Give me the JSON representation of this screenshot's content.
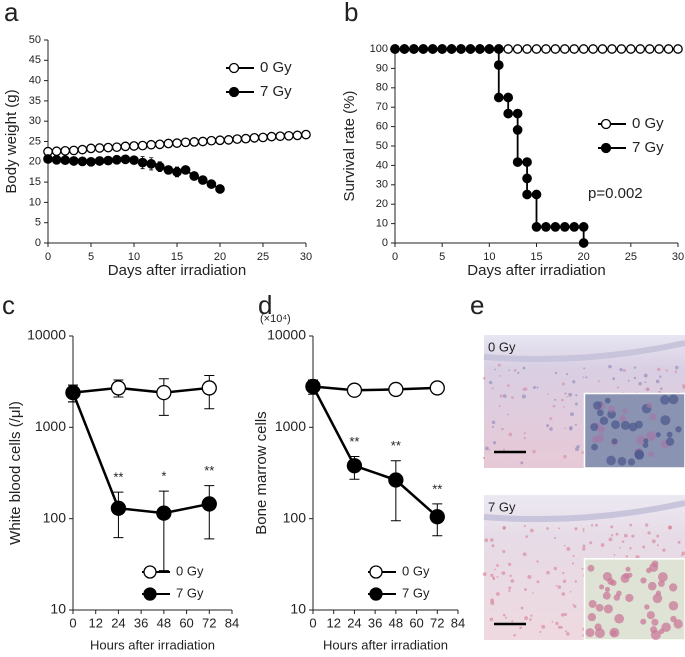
{
  "chart_data": [
    {
      "type": "line",
      "panel_label": "a",
      "ylabel": "Body weight (g)",
      "xlabel": "Days after irradiation",
      "x": [
        0,
        1,
        2,
        3,
        4,
        5,
        6,
        7,
        8,
        9,
        10,
        11,
        12,
        13,
        14,
        15,
        16,
        17,
        18,
        19,
        20,
        21,
        22,
        23,
        24,
        25,
        26,
        27,
        28,
        29,
        30
      ],
      "xlim": [
        0,
        30
      ],
      "xticks": [
        0,
        5,
        10,
        15,
        20,
        25,
        30
      ],
      "ylim": [
        0,
        50
      ],
      "yticks": [
        0,
        5,
        10,
        15,
        20,
        25,
        30,
        35,
        40,
        45,
        50
      ],
      "legend": "upper right",
      "series": [
        {
          "name": "0 Gy",
          "color": "#000000",
          "marker_fill": "#ffffff",
          "values": [
            22.5,
            22.6,
            22.7,
            22.8,
            23.0,
            23.3,
            23.4,
            23.5,
            23.6,
            23.8,
            23.9,
            24.0,
            24.2,
            24.3,
            24.5,
            24.6,
            24.8,
            24.9,
            25.0,
            25.2,
            25.3,
            25.4,
            25.6,
            25.7,
            25.9,
            26.0,
            26.2,
            26.3,
            26.4,
            26.5,
            26.7
          ],
          "errors": [
            0.3,
            0.3,
            0.3,
            0.3,
            0.3,
            0.3,
            0.3,
            0.3,
            0.3,
            0.3,
            0.5,
            0.5,
            0.5,
            0.5,
            0.5,
            0.5,
            0.5,
            0.5,
            0.5,
            0.5,
            0.8,
            0.8,
            0.8,
            0.8,
            0.8,
            0.8,
            0.8,
            0.8,
            0.8,
            0.8,
            0.8
          ]
        },
        {
          "name": "7 Gy",
          "color": "#000000",
          "marker_fill": "#000000",
          "values": [
            20.7,
            20.5,
            20.4,
            20.2,
            20.1,
            20.0,
            20.2,
            20.3,
            20.5,
            20.6,
            20.4,
            19.8,
            19.5,
            18.8,
            18.0,
            17.5,
            18.0,
            16.5,
            15.5,
            14.5,
            13.3,
            null,
            null,
            null,
            null,
            null,
            null,
            null,
            null,
            null,
            null
          ],
          "errors": [
            0.5,
            0.5,
            0.5,
            0.5,
            0.5,
            0.5,
            0.5,
            0.6,
            0.6,
            0.7,
            0.8,
            1.5,
            1.5,
            1.2,
            1.0,
            1.2,
            0.8,
            0.6,
            0.6,
            0.5,
            0.5,
            null,
            null,
            null,
            null,
            null,
            null,
            null,
            null,
            null,
            null
          ]
        }
      ]
    },
    {
      "type": "line",
      "panel_label": "b",
      "ylabel": "Survival rate (%)",
      "xlabel": "Days after irradiation",
      "xlim": [
        0,
        30
      ],
      "xticks": [
        0,
        5,
        10,
        15,
        20,
        25,
        30
      ],
      "ylim": [
        0,
        100
      ],
      "yticks": [
        0,
        10,
        20,
        30,
        40,
        50,
        60,
        70,
        80,
        90,
        100
      ],
      "legend": "center right",
      "annotation": "p=0.002",
      "series": [
        {
          "name": "0 Gy",
          "color": "#000000",
          "marker_fill": "#ffffff",
          "x": [
            0,
            1,
            2,
            3,
            4,
            5,
            6,
            7,
            8,
            9,
            10,
            11,
            12,
            13,
            14,
            15,
            16,
            17,
            18,
            19,
            20,
            21,
            22,
            23,
            24,
            25,
            26,
            27,
            28,
            29,
            30
          ],
          "values": [
            100,
            100,
            100,
            100,
            100,
            100,
            100,
            100,
            100,
            100,
            100,
            100,
            100,
            100,
            100,
            100,
            100,
            100,
            100,
            100,
            100,
            100,
            100,
            100,
            100,
            100,
            100,
            100,
            100,
            100,
            100
          ]
        },
        {
          "name": "7 Gy",
          "color": "#000000",
          "marker_fill": "#000000",
          "x": [
            0,
            1,
            2,
            3,
            4,
            5,
            6,
            7,
            8,
            9,
            10,
            11,
            11,
            11,
            12,
            12,
            13,
            13,
            13,
            14,
            14,
            14,
            15,
            15,
            16,
            17,
            18,
            19,
            20,
            20
          ],
          "values": [
            100,
            100,
            100,
            100,
            100,
            100,
            100,
            100,
            100,
            100,
            100,
            100,
            91.7,
            75,
            75,
            66.7,
            66.7,
            58.3,
            41.7,
            41.7,
            33.3,
            25,
            25,
            8.3,
            8.3,
            8.3,
            8.3,
            8.3,
            8.3,
            0
          ]
        }
      ]
    },
    {
      "type": "line",
      "panel_label": "c",
      "ylabel": "White blood cells (/μl)",
      "xlabel": "Hours after irradiation",
      "log_y": true,
      "x": [
        0,
        24,
        48,
        72
      ],
      "xlim": [
        0,
        84
      ],
      "xticks": [
        0,
        12,
        24,
        36,
        48,
        60,
        72,
        84
      ],
      "ylim": [
        10,
        10000
      ],
      "yticks": [
        10,
        100,
        1000,
        10000
      ],
      "legend": "lower right",
      "series": [
        {
          "name": "0 Gy",
          "color": "#000000",
          "marker_fill": "#ffffff",
          "values": [
            2400,
            2700,
            2400,
            2700
          ],
          "err_low": [
            1900,
            2150,
            1350,
            1600
          ],
          "err_high": [
            2900,
            3300,
            3400,
            3700
          ]
        },
        {
          "name": "7 Gy",
          "color": "#000000",
          "marker_fill": "#000000",
          "values": [
            2400,
            130,
            115,
            145
          ],
          "err_low": [
            1900,
            62,
            27,
            60
          ],
          "err_high": [
            2900,
            195,
            200,
            230
          ]
        }
      ],
      "annotations": [
        {
          "x": 24,
          "text": "**"
        },
        {
          "x": 48,
          "text": "*"
        },
        {
          "x": 72,
          "text": "**"
        }
      ]
    },
    {
      "type": "line",
      "panel_label": "d",
      "unit_note": "(×10⁴)",
      "ylabel": "Bone marrow cells",
      "xlabel": "Hours after irradiation",
      "log_y": true,
      "x": [
        0,
        24,
        48,
        72
      ],
      "xlim": [
        0,
        84
      ],
      "xticks": [
        0,
        12,
        24,
        36,
        48,
        60,
        72,
        84
      ],
      "ylim": [
        10,
        10000
      ],
      "yticks": [
        10,
        100,
        1000,
        10000
      ],
      "legend": "lower right",
      "series": [
        {
          "name": "0 Gy",
          "color": "#000000",
          "marker_fill": "#ffffff",
          "values": [
            2800,
            2550,
            2600,
            2700
          ],
          "err_low": [
            2500,
            2400,
            2450,
            2550
          ],
          "err_high": [
            3100,
            2700,
            2750,
            2850
          ]
        },
        {
          "name": "7 Gy",
          "color": "#000000",
          "marker_fill": "#000000",
          "values": [
            2800,
            380,
            265,
            105
          ],
          "err_low": [
            2300,
            270,
            95,
            65
          ],
          "err_high": [
            3300,
            480,
            430,
            145
          ]
        }
      ],
      "annotations": [
        {
          "x": 24,
          "text": "**"
        },
        {
          "x": 48,
          "text": "**"
        },
        {
          "x": 72,
          "text": "**"
        }
      ]
    },
    {
      "type": "image",
      "panel_label": "e",
      "images": [
        {
          "label": "0 Gy"
        },
        {
          "label": "7 Gy"
        }
      ]
    }
  ]
}
